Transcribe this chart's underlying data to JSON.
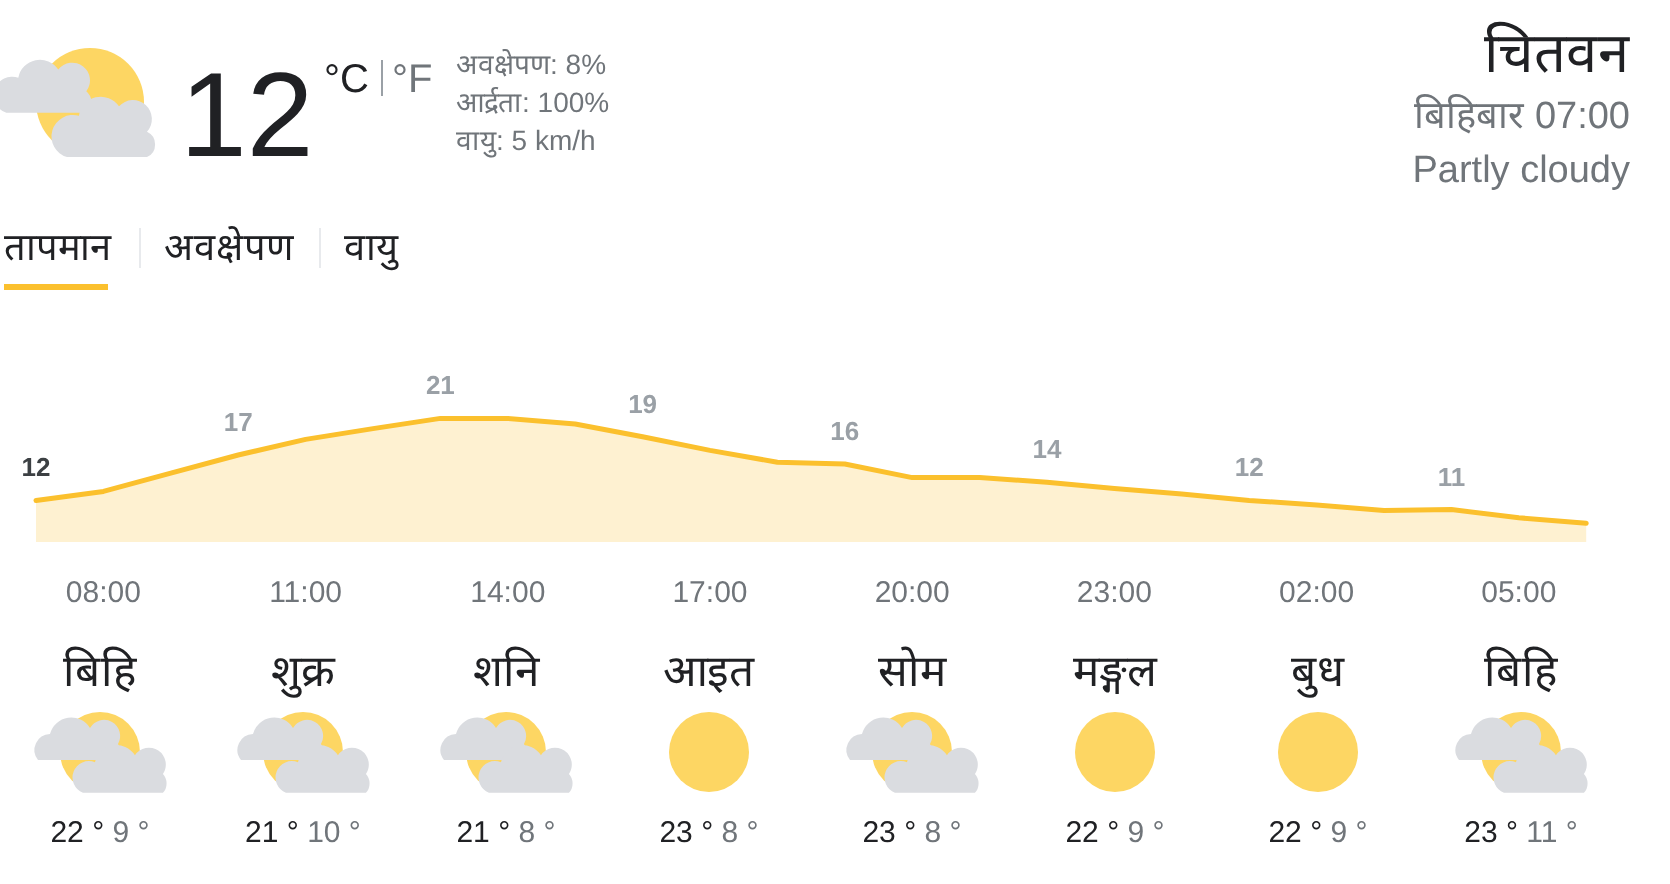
{
  "chart_data": [
    {
      "type": "other",
      "title": "चितवन",
      "subtitle": "बिहिबार 07:00",
      "annotations": [
        "12",
        "°C",
        "°F",
        "अवक्षेपण: 8%",
        "आर्द्रता: 100%",
        "वायु: 5 km/h",
        "Partly cloudy",
        "तापमान",
        "अवक्षेपण",
        "वायु"
      ]
    },
    {
      "type": "area",
      "categories": [
        null,
        "08:00",
        null,
        null,
        "11:00",
        null,
        null,
        "14:00",
        null,
        null,
        "17:00",
        null,
        null,
        "20:00",
        null,
        null,
        "23:00",
        null,
        null,
        "02:00",
        null,
        null,
        "05:00",
        null
      ],
      "series": [
        {
          "color": "#fbc02d",
          "values": [
            12,
            13,
            15,
            17,
            18.7,
            19.9,
            21,
            21,
            20.4,
            19,
            17.5,
            16.2,
            16,
            14.5,
            14.5,
            14,
            13.3,
            12.7,
            12,
            11.5,
            10.9,
            11,
            10.1,
            9.5
          ],
          "value_labels": [
            "12",
            null,
            null,
            "17",
            null,
            null,
            "21",
            null,
            null,
            "19",
            null,
            null,
            "16",
            null,
            null,
            "14",
            null,
            null,
            "12",
            null,
            null,
            "11",
            null,
            null
          ]
        }
      ],
      "tick_labels": "x"
    },
    {
      "type": "other",
      "categories": [
        "बिहि",
        "शुक्र",
        "शनि",
        "आइत",
        "सोम",
        "मङ्गल",
        "बुध",
        "बिहि"
      ],
      "series": [
        {
          "color": "#202124",
          "values": [
            22,
            21,
            21,
            23,
            23,
            22,
            22,
            23
          ],
          "value_labels": [
            "22 °",
            "21 °",
            "21 °",
            "23 °",
            "23 °",
            "22 °",
            "22 °",
            "23 °"
          ]
        },
        {
          "color": "#70757a",
          "values": [
            9,
            10,
            8,
            8,
            8,
            9,
            9,
            11
          ],
          "value_labels": [
            "9 °",
            "10 °",
            "8 °",
            "8 °",
            "8 °",
            "9 °",
            "9 °",
            "11 °"
          ]
        }
      ]
    }
  ]
}
